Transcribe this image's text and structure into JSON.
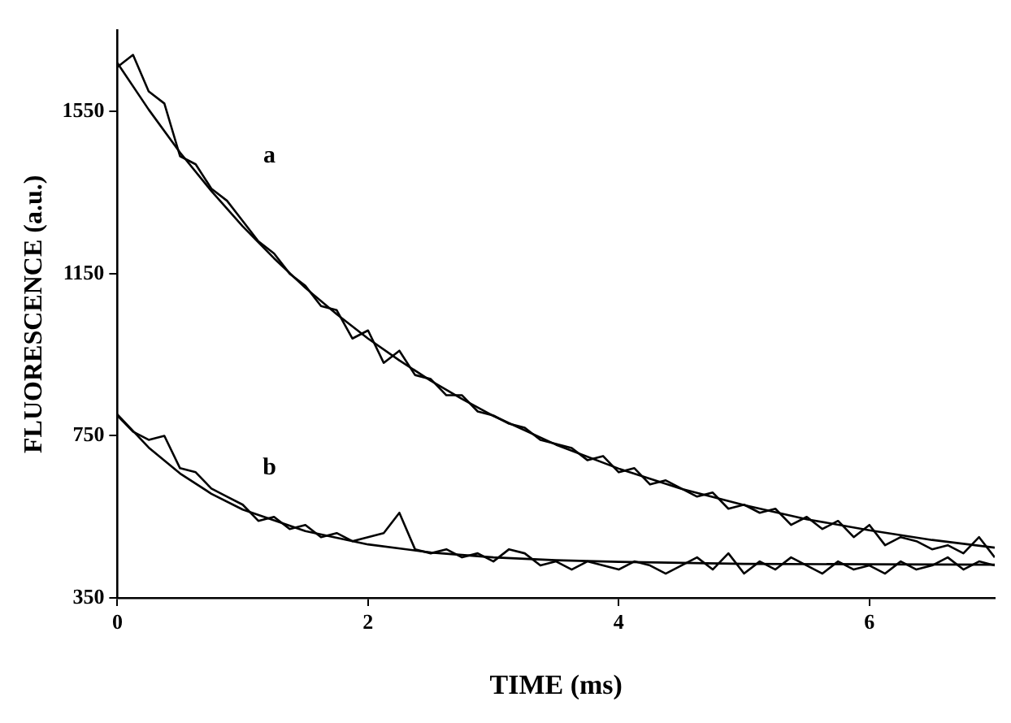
{
  "chart_data": {
    "type": "line",
    "xlabel": "TIME (ms)",
    "ylabel": "FLUORESCENCE (a.u.)",
    "xlim": [
      0,
      7
    ],
    "xticks": [
      0,
      2,
      4,
      6
    ],
    "ylim": [
      350,
      1750
    ],
    "yticks": [
      350,
      750,
      1150,
      1550
    ],
    "grid": false,
    "legend": false,
    "marker": "none",
    "line_style": "solid",
    "series": [
      {
        "color": "#000000",
        "x": [
          0,
          0.125,
          0.25,
          0.375,
          0.5,
          0.625,
          0.75,
          0.875,
          1,
          1.125,
          1.25,
          1.375,
          1.5,
          1.625,
          1.75,
          1.875,
          2,
          2.125,
          2.25,
          2.375,
          2.5,
          2.625,
          2.75,
          2.875,
          3,
          3.125,
          3.25,
          3.375,
          3.5,
          3.625,
          3.75,
          3.875,
          4,
          4.125,
          4.25,
          4.375,
          4.5,
          4.625,
          4.75,
          4.875,
          5,
          5.125,
          5.25,
          5.375,
          5.5,
          5.625,
          5.75,
          5.875,
          6,
          6.125,
          6.25,
          6.375,
          6.5,
          6.625,
          6.75,
          6.875,
          7
        ],
        "values": [
          1660,
          1690,
          1600,
          1570,
          1440,
          1420,
          1360,
          1330,
          1280,
          1230,
          1200,
          1150,
          1120,
          1070,
          1060,
          990,
          1010,
          930,
          960,
          900,
          890,
          850,
          850,
          810,
          800,
          780,
          770,
          740,
          730,
          720,
          690,
          700,
          660,
          670,
          630,
          640,
          620,
          600,
          610,
          570,
          580,
          560,
          570,
          530,
          550,
          520,
          540,
          500,
          530,
          480,
          500,
          490,
          470,
          480,
          460,
          500,
          450
        ]
      },
      {
        "color": "#000000",
        "x": [
          0,
          0.25,
          0.5,
          0.75,
          1,
          1.25,
          1.5,
          1.75,
          2,
          2.25,
          2.5,
          2.75,
          3,
          3.5,
          4,
          4.5,
          5,
          5.5,
          6,
          6.5,
          7
        ],
        "values": [
          1670,
          1555,
          1449,
          1354,
          1267,
          1188,
          1115,
          1050,
          990,
          936,
          886,
          841,
          799,
          728,
          669,
          619,
          579,
          544,
          517,
          493,
          474
        ]
      },
      {
        "color": "#000000",
        "x": [
          0,
          0.125,
          0.25,
          0.375,
          0.5,
          0.625,
          0.75,
          0.875,
          1,
          1.125,
          1.25,
          1.375,
          1.5,
          1.625,
          1.75,
          1.875,
          2,
          2.125,
          2.25,
          2.375,
          2.5,
          2.625,
          2.75,
          2.875,
          3,
          3.125,
          3.25,
          3.375,
          3.5,
          3.625,
          3.75,
          3.875,
          4,
          4.125,
          4.25,
          4.375,
          4.5,
          4.625,
          4.75,
          4.875,
          5,
          5.125,
          5.25,
          5.375,
          5.5,
          5.625,
          5.75,
          5.875,
          6,
          6.125,
          6.25,
          6.375,
          6.5,
          6.625,
          6.75,
          6.875,
          7
        ],
        "values": [
          800,
          760,
          740,
          750,
          670,
          660,
          620,
          600,
          580,
          540,
          550,
          520,
          530,
          500,
          510,
          490,
          500,
          510,
          560,
          470,
          460,
          470,
          450,
          460,
          440,
          470,
          460,
          430,
          440,
          420,
          440,
          430,
          420,
          440,
          430,
          410,
          430,
          450,
          420,
          460,
          410,
          440,
          420,
          450,
          430,
          410,
          440,
          420,
          430,
          410,
          440,
          420,
          430,
          450,
          420,
          440,
          430
        ]
      },
      {
        "color": "#000000",
        "x": [
          0,
          0.25,
          0.5,
          0.75,
          1,
          1.5,
          2,
          2.5,
          3,
          3.5,
          4,
          5,
          6,
          7
        ],
        "values": [
          803,
          721,
          657,
          607,
          568,
          515,
          482,
          462,
          450,
          443,
          439,
          434,
          433,
          432
        ]
      }
    ],
    "annotations": [
      "a",
      "b"
    ]
  }
}
